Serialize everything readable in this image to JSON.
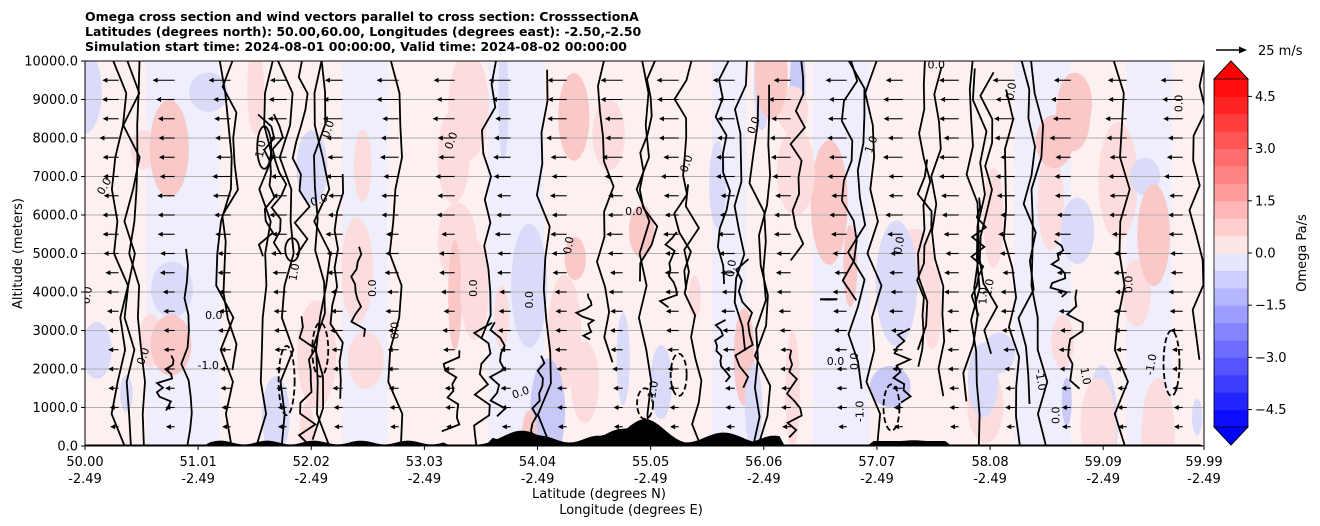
{
  "title_lines": [
    "Omega cross section and wind vectors parallel to cross section: CrosssectionA",
    "Latitudes (degrees north): 50.00,60.00, Longitudes (degrees east): -2.50,-2.50",
    "Simulation start time: 2024-08-01 00:00:00, Valid time: 2024-08-02 00:00:00"
  ],
  "chart_data": {
    "type": "heatmap",
    "title": "Omega cross section and wind vectors parallel to cross section: CrosssectionA",
    "xlabel_lines": [
      "Latitude (degrees N)",
      "Longitude (degrees E)"
    ],
    "ylabel": "Altitude (meters)",
    "ylim": [
      0,
      10000
    ],
    "y_ticks": [
      "0.0",
      "1000.0",
      "2000.0",
      "3000.0",
      "4000.0",
      "5000.0",
      "6000.0",
      "7000.0",
      "8000.0",
      "9000.0",
      "10000.0"
    ],
    "y_tick_values": [
      0,
      1000,
      2000,
      3000,
      4000,
      5000,
      6000,
      7000,
      8000,
      9000,
      10000
    ],
    "xlim": [
      50.0,
      59.99
    ],
    "x_ticks": [
      {
        "lat": "50.00",
        "lon": "-2.49"
      },
      {
        "lat": "51.01",
        "lon": "-2.49"
      },
      {
        "lat": "52.02",
        "lon": "-2.49"
      },
      {
        "lat": "53.03",
        "lon": "-2.49"
      },
      {
        "lat": "54.04",
        "lon": "-2.49"
      },
      {
        "lat": "55.05",
        "lon": "-2.49"
      },
      {
        "lat": "56.06",
        "lon": "-2.49"
      },
      {
        "lat": "57.07",
        "lon": "-2.49"
      },
      {
        "lat": "58.08",
        "lon": "-2.49"
      },
      {
        "lat": "59.09",
        "lon": "-2.49"
      },
      {
        "lat": "59.99",
        "lon": "-2.49"
      }
    ],
    "x_tick_values": [
      50.0,
      51.01,
      52.02,
      53.03,
      54.04,
      55.05,
      56.06,
      57.07,
      58.08,
      59.09,
      59.99
    ],
    "grid": "horizontal",
    "colorbar": {
      "label": "Omega Pa/s",
      "range": [
        -5.0,
        5.0
      ],
      "tick_labels": [
        "4.5",
        "3.0",
        "1.5",
        "0.0",
        "−1.5",
        "−3.0",
        "−4.5"
      ],
      "tick_values": [
        4.5,
        3.0,
        1.5,
        0.0,
        -1.5,
        -3.0,
        -4.5
      ],
      "extend": "both",
      "negative_color": "#0000ff",
      "positive_color": "#ff0000"
    },
    "quiver_key": {
      "label": "25 m/s",
      "speed": 25
    },
    "wind_direction": "southward (toward lower latitude)",
    "contour_levels": [
      -1.0,
      0.0,
      1.0
    ],
    "contour_labels": [
      "0.0",
      "1.0",
      "-1.0"
    ],
    "terrain_peaks": [
      {
        "lat": 54.8,
        "altitude": 450
      },
      {
        "lat": 55.0,
        "altitude": 700
      },
      {
        "lat": 55.7,
        "altitude": 350
      },
      {
        "lat": 53.9,
        "altitude": 400
      },
      {
        "lat": 57.4,
        "altitude": 150
      }
    ]
  }
}
